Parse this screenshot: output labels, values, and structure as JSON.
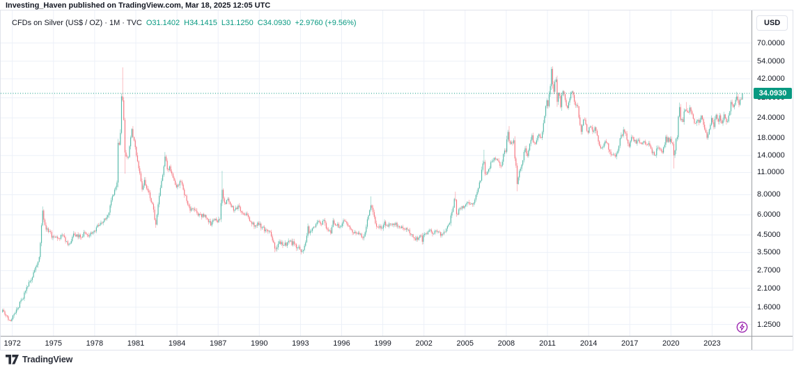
{
  "page": {
    "attribution": "Investing_Haven published on TradingView.com, Mar 18, 2025 12:05 UTC",
    "logo_text": "TradingView"
  },
  "legend": {
    "symbol": "CFDs on Silver (US$ / OZ) · 1M · TVC",
    "values": [
      "O31.1402",
      "H34.1415",
      "L31.1250",
      "C34.0930",
      "+2.9760 (+9.56%)"
    ]
  },
  "price_axis": {
    "currency_label": "USD",
    "ticks": [
      "70.0000",
      "54.0000",
      "42.0000",
      "32.0000",
      "24.0000",
      "18.0000",
      "14.0000",
      "11.0000",
      "8.0000",
      "6.0000",
      "4.5000",
      "3.5000",
      "2.7000",
      "2.1000",
      "1.6000",
      "1.2500"
    ],
    "last_price_label": "34.0930"
  },
  "time_axis": {
    "ticks": [
      "1972",
      "1975",
      "1978",
      "1981",
      "1984",
      "1987",
      "1990",
      "1993",
      "1996",
      "1999",
      "2002",
      "2005",
      "2008",
      "2011",
      "2014",
      "2017",
      "2020",
      "2023"
    ]
  },
  "colors": {
    "up": "#089981",
    "down": "#F23645",
    "candle_opacity": 0.55,
    "grid": "#ECF0F8",
    "axis_line": "#9B9EA3",
    "border": "#E0E3EB",
    "text": "#131722",
    "accent": "#089981",
    "badge_bg": "#089981",
    "badge_text": "#FFFFFF",
    "boost": "#9C27B0"
  },
  "chart_data": {
    "type": "candlestick",
    "title": "CFDs on Silver (US$ / OZ) · 1M · TVC",
    "exchange": "TVC",
    "timeframe": "1M",
    "scale": "log",
    "x_unit": "year",
    "x_range": [
      1971.29,
      2025.21
    ],
    "x_ticks": [
      1972,
      1975,
      1978,
      1981,
      1984,
      1987,
      1990,
      1993,
      1996,
      1999,
      2002,
      2005,
      2008,
      2011,
      2014,
      2017,
      2020,
      2023
    ],
    "y_ticks": [
      70,
      54,
      42,
      32,
      24,
      18,
      14,
      11,
      8,
      6,
      4.5,
      3.5,
      2.7,
      2.1,
      1.6,
      1.25
    ],
    "last_price": 34.093,
    "last_bar": {
      "open": 31.1402,
      "high": 34.1415,
      "low": 31.125,
      "close": 34.093,
      "change": "+2.9760",
      "change_pct": "+9.56%"
    },
    "anchors": [
      [
        1971.29,
        1.54
      ],
      [
        1971.54,
        1.42
      ],
      [
        1971.87,
        1.31
      ],
      [
        1972.04,
        1.42
      ],
      [
        1972.37,
        1.57
      ],
      [
        1972.71,
        1.79
      ],
      [
        1972.96,
        2.02
      ],
      [
        1973.29,
        2.32
      ],
      [
        1973.62,
        2.72
      ],
      [
        1973.96,
        3.28
      ],
      [
        1974.12,
        5.1
      ],
      [
        1974.21,
        6.4
      ],
      [
        1974.37,
        5.2
      ],
      [
        1974.62,
        4.7
      ],
      [
        1974.96,
        4.4
      ],
      [
        1975.29,
        4.28
      ],
      [
        1975.62,
        4.52
      ],
      [
        1975.96,
        4.1
      ],
      [
        1976.12,
        3.94
      ],
      [
        1976.46,
        4.58
      ],
      [
        1976.96,
        4.35
      ],
      [
        1977.29,
        4.66
      ],
      [
        1977.62,
        4.44
      ],
      [
        1977.96,
        4.76
      ],
      [
        1978.29,
        5.12
      ],
      [
        1978.62,
        5.42
      ],
      [
        1978.96,
        5.97
      ],
      [
        1979.21,
        7.4
      ],
      [
        1979.46,
        8.6
      ],
      [
        1979.62,
        9.2
      ],
      [
        1979.71,
        17.0
      ],
      [
        1979.79,
        16.3
      ],
      [
        1979.87,
        18.8
      ],
      [
        1979.96,
        33.0
      ],
      [
        1980.04,
        31.0
      ],
      [
        1980.12,
        24.0
      ],
      [
        1980.21,
        14.5
      ],
      [
        1980.45,
        13.5
      ],
      [
        1980.71,
        20.5
      ],
      [
        1980.96,
        15.8
      ],
      [
        1981.12,
        13.0
      ],
      [
        1981.46,
        8.6
      ],
      [
        1981.62,
        9.9
      ],
      [
        1981.96,
        8.25
      ],
      [
        1982.21,
        7.0
      ],
      [
        1982.46,
        5.2
      ],
      [
        1982.62,
        6.9
      ],
      [
        1982.79,
        8.8
      ],
      [
        1982.96,
        10.6
      ],
      [
        1983.12,
        13.9
      ],
      [
        1983.29,
        11.5
      ],
      [
        1983.46,
        12.0
      ],
      [
        1983.71,
        10.2
      ],
      [
        1983.96,
        8.9
      ],
      [
        1984.21,
        9.7
      ],
      [
        1984.46,
        8.6
      ],
      [
        1984.71,
        7.3
      ],
      [
        1984.96,
        6.35
      ],
      [
        1985.21,
        6.55
      ],
      [
        1985.46,
        6.15
      ],
      [
        1985.71,
        6.05
      ],
      [
        1985.96,
        5.85
      ],
      [
        1986.21,
        5.65
      ],
      [
        1986.46,
        5.15
      ],
      [
        1986.71,
        5.55
      ],
      [
        1986.96,
        5.4
      ],
      [
        1987.12,
        5.55
      ],
      [
        1987.29,
        8.6
      ],
      [
        1987.37,
        7.6
      ],
      [
        1987.54,
        7.0
      ],
      [
        1987.71,
        7.55
      ],
      [
        1987.96,
        6.7
      ],
      [
        1988.21,
        6.45
      ],
      [
        1988.46,
        6.85
      ],
      [
        1988.71,
        6.2
      ],
      [
        1988.96,
        6.0
      ],
      [
        1989.21,
        5.8
      ],
      [
        1989.46,
        5.25
      ],
      [
        1989.71,
        5.15
      ],
      [
        1989.96,
        5.2
      ],
      [
        1990.21,
        5.0
      ],
      [
        1990.46,
        4.85
      ],
      [
        1990.71,
        4.75
      ],
      [
        1990.96,
        4.15
      ],
      [
        1991.12,
        3.7
      ],
      [
        1991.37,
        3.95
      ],
      [
        1991.62,
        4.05
      ],
      [
        1991.96,
        3.85
      ],
      [
        1992.21,
        4.1
      ],
      [
        1992.54,
        3.95
      ],
      [
        1992.79,
        3.75
      ],
      [
        1992.96,
        3.65
      ],
      [
        1993.12,
        3.55
      ],
      [
        1993.29,
        3.85
      ],
      [
        1993.46,
        4.45
      ],
      [
        1993.54,
        5.1
      ],
      [
        1993.62,
        4.6
      ],
      [
        1993.96,
        5.05
      ],
      [
        1994.21,
        5.4
      ],
      [
        1994.46,
        5.25
      ],
      [
        1994.71,
        5.55
      ],
      [
        1994.96,
        4.85
      ],
      [
        1995.21,
        4.6
      ],
      [
        1995.37,
        5.55
      ],
      [
        1995.62,
        5.15
      ],
      [
        1995.96,
        5.1
      ],
      [
        1996.12,
        5.55
      ],
      [
        1996.37,
        5.3
      ],
      [
        1996.71,
        4.85
      ],
      [
        1996.96,
        4.7
      ],
      [
        1997.21,
        4.65
      ],
      [
        1997.54,
        4.3
      ],
      [
        1997.79,
        5.05
      ],
      [
        1997.96,
        5.95
      ],
      [
        1998.12,
        6.9
      ],
      [
        1998.29,
        6.25
      ],
      [
        1998.46,
        5.3
      ],
      [
        1998.71,
        5.0
      ],
      [
        1998.96,
        4.95
      ],
      [
        1999.12,
        5.45
      ],
      [
        1999.29,
        5.15
      ],
      [
        1999.62,
        5.25
      ],
      [
        1999.96,
        5.35
      ],
      [
        2000.12,
        5.1
      ],
      [
        2000.46,
        4.95
      ],
      [
        2000.79,
        4.85
      ],
      [
        2000.96,
        4.6
      ],
      [
        2001.21,
        4.35
      ],
      [
        2001.54,
        4.2
      ],
      [
        2001.79,
        4.45
      ],
      [
        2001.87,
        4.05
      ],
      [
        2001.96,
        4.5
      ],
      [
        2002.21,
        4.55
      ],
      [
        2002.46,
        4.85
      ],
      [
        2002.62,
        4.55
      ],
      [
        2002.96,
        4.7
      ],
      [
        2003.21,
        4.45
      ],
      [
        2003.54,
        4.7
      ],
      [
        2003.87,
        5.3
      ],
      [
        2003.96,
        5.95
      ],
      [
        2004.12,
        6.6
      ],
      [
        2004.26,
        8.0
      ],
      [
        2004.37,
        6.05
      ],
      [
        2004.62,
        6.6
      ],
      [
        2004.96,
        6.8
      ],
      [
        2005.21,
        7.2
      ],
      [
        2005.46,
        7.05
      ],
      [
        2005.71,
        7.45
      ],
      [
        2005.96,
        8.8
      ],
      [
        2006.12,
        9.7
      ],
      [
        2006.29,
        12.5
      ],
      [
        2006.37,
        12.9
      ],
      [
        2006.46,
        10.7
      ],
      [
        2006.71,
        11.5
      ],
      [
        2006.96,
        12.9
      ],
      [
        2007.21,
        13.3
      ],
      [
        2007.37,
        13.1
      ],
      [
        2007.62,
        12.0
      ],
      [
        2007.79,
        14.3
      ],
      [
        2007.96,
        14.8
      ],
      [
        2008.12,
        19.8
      ],
      [
        2008.21,
        17.2
      ],
      [
        2008.37,
        16.9
      ],
      [
        2008.54,
        17.5
      ],
      [
        2008.62,
        13.5
      ],
      [
        2008.71,
        12.1
      ],
      [
        2008.79,
        9.3
      ],
      [
        2008.87,
        10.2
      ],
      [
        2008.96,
        11.3
      ],
      [
        2009.21,
        13.1
      ],
      [
        2009.37,
        15.6
      ],
      [
        2009.54,
        13.9
      ],
      [
        2009.71,
        16.6
      ],
      [
        2009.87,
        18.8
      ],
      [
        2009.96,
        16.9
      ],
      [
        2010.12,
        16.5
      ],
      [
        2010.29,
        18.6
      ],
      [
        2010.54,
        18.0
      ],
      [
        2010.62,
        19.4
      ],
      [
        2010.79,
        24.6
      ],
      [
        2010.87,
        28.2
      ],
      [
        2010.96,
        30.9
      ],
      [
        2011.04,
        28.3
      ],
      [
        2011.13,
        33.9
      ],
      [
        2011.21,
        37.9
      ],
      [
        2011.29,
        48.6
      ],
      [
        2011.38,
        38.3
      ],
      [
        2011.46,
        34.8
      ],
      [
        2011.54,
        40.1
      ],
      [
        2011.63,
        41.7
      ],
      [
        2011.71,
        30.0
      ],
      [
        2011.79,
        34.3
      ],
      [
        2011.88,
        32.8
      ],
      [
        2011.96,
        27.9
      ],
      [
        2012.04,
        33.3
      ],
      [
        2012.12,
        35.3
      ],
      [
        2012.29,
        31.0
      ],
      [
        2012.46,
        27.6
      ],
      [
        2012.62,
        31.6
      ],
      [
        2012.71,
        34.6
      ],
      [
        2012.88,
        33.3
      ],
      [
        2012.96,
        30.2
      ],
      [
        2013.12,
        28.9
      ],
      [
        2013.21,
        28.3
      ],
      [
        2013.29,
        24.2
      ],
      [
        2013.46,
        19.6
      ],
      [
        2013.62,
        23.5
      ],
      [
        2013.79,
        21.9
      ],
      [
        2013.96,
        19.4
      ],
      [
        2014.12,
        21.2
      ],
      [
        2014.29,
        19.7
      ],
      [
        2014.46,
        21.0
      ],
      [
        2014.71,
        17.1
      ],
      [
        2014.88,
        15.5
      ],
      [
        2014.96,
        15.7
      ],
      [
        2015.12,
        16.6
      ],
      [
        2015.37,
        16.7
      ],
      [
        2015.54,
        14.8
      ],
      [
        2015.88,
        14.1
      ],
      [
        2015.96,
        13.8
      ],
      [
        2016.12,
        14.9
      ],
      [
        2016.29,
        17.9
      ],
      [
        2016.46,
        18.6
      ],
      [
        2016.54,
        20.3
      ],
      [
        2016.71,
        19.2
      ],
      [
        2016.88,
        16.5
      ],
      [
        2016.96,
        15.9
      ],
      [
        2017.12,
        18.3
      ],
      [
        2017.29,
        17.2
      ],
      [
        2017.46,
        16.6
      ],
      [
        2017.62,
        17.6
      ],
      [
        2017.88,
        16.5
      ],
      [
        2017.96,
        16.9
      ],
      [
        2018.04,
        17.2
      ],
      [
        2018.29,
        16.4
      ],
      [
        2018.46,
        16.1
      ],
      [
        2018.54,
        15.5
      ],
      [
        2018.62,
        14.5
      ],
      [
        2018.71,
        14.7
      ],
      [
        2018.88,
        14.1
      ],
      [
        2018.96,
        15.5
      ],
      [
        2019.12,
        15.6
      ],
      [
        2019.29,
        15.0
      ],
      [
        2019.38,
        14.6
      ],
      [
        2019.54,
        16.3
      ],
      [
        2019.62,
        18.4
      ],
      [
        2019.71,
        17.0
      ],
      [
        2019.79,
        18.1
      ],
      [
        2019.88,
        17.0
      ],
      [
        2019.96,
        17.8
      ],
      [
        2020.12,
        16.7
      ],
      [
        2020.21,
        14.0
      ],
      [
        2020.29,
        15.0
      ],
      [
        2020.38,
        17.9
      ],
      [
        2020.46,
        18.2
      ],
      [
        2020.54,
        24.4
      ],
      [
        2020.63,
        28.3
      ],
      [
        2020.71,
        23.2
      ],
      [
        2020.79,
        23.6
      ],
      [
        2020.88,
        22.6
      ],
      [
        2020.96,
        26.4
      ],
      [
        2021.04,
        27.0
      ],
      [
        2021.12,
        26.7
      ],
      [
        2021.29,
        25.9
      ],
      [
        2021.38,
        28.0
      ],
      [
        2021.71,
        22.2
      ],
      [
        2021.96,
        23.3
      ],
      [
        2022.04,
        22.4
      ],
      [
        2022.21,
        24.8
      ],
      [
        2022.46,
        20.3
      ],
      [
        2022.62,
        18.0
      ],
      [
        2022.71,
        19.0
      ],
      [
        2022.88,
        21.8
      ],
      [
        2022.96,
        24.0
      ],
      [
        2023.12,
        20.9
      ],
      [
        2023.29,
        25.1
      ],
      [
        2023.46,
        22.7
      ],
      [
        2023.54,
        24.9
      ],
      [
        2023.71,
        22.2
      ],
      [
        2023.88,
        25.3
      ],
      [
        2023.96,
        23.8
      ],
      [
        2024.12,
        22.7
      ],
      [
        2024.21,
        24.9
      ],
      [
        2024.29,
        26.3
      ],
      [
        2024.38,
        30.4
      ],
      [
        2024.46,
        29.1
      ],
      [
        2024.54,
        28.0
      ],
      [
        2024.62,
        28.8
      ],
      [
        2024.71,
        31.1
      ],
      [
        2024.79,
        32.6
      ],
      [
        2024.88,
        30.6
      ],
      [
        2024.96,
        28.9
      ],
      [
        2025.04,
        31.3
      ],
      [
        2025.12,
        31.14
      ],
      [
        2025.21,
        34.09
      ]
    ],
    "wick_overrides": [
      {
        "t": 1974.21,
        "high": 6.76
      },
      {
        "t": 1980.04,
        "high": 49.45
      },
      {
        "t": 1980.21,
        "low": 10.8
      },
      {
        "t": 1982.46,
        "low": 4.98
      },
      {
        "t": 1983.12,
        "high": 14.72
      },
      {
        "t": 1987.29,
        "high": 11.25
      },
      {
        "t": 1991.12,
        "low": 3.51
      },
      {
        "t": 1993.12,
        "low": 3.52
      },
      {
        "t": 1998.12,
        "high": 7.81
      },
      {
        "t": 2001.87,
        "low": 4.03
      },
      {
        "t": 2004.26,
        "high": 8.35
      },
      {
        "t": 2006.37,
        "high": 15.21
      },
      {
        "t": 2008.21,
        "high": 21.35
      },
      {
        "t": 2008.79,
        "low": 8.4
      },
      {
        "t": 2011.29,
        "high": 49.82
      },
      {
        "t": 2016.54,
        "high": 21.13
      },
      {
        "t": 2018.88,
        "low": 13.9
      },
      {
        "t": 2020.21,
        "low": 11.64
      },
      {
        "t": 2020.63,
        "high": 29.86
      },
      {
        "t": 2021.12,
        "high": 30.1
      },
      {
        "t": 2022.71,
        "low": 17.56
      },
      {
        "t": 2024.79,
        "high": 34.87
      }
    ]
  }
}
